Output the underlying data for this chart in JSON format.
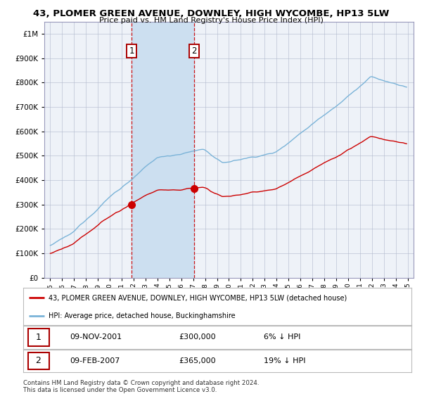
{
  "title": "43, PLOMER GREEN AVENUE, DOWNLEY, HIGH WYCOMBE, HP13 5LW",
  "subtitle": "Price paid vs. HM Land Registry's House Price Index (HPI)",
  "sale1_date": "09-NOV-2001",
  "sale1_price": 300000,
  "sale1_label": "1",
  "sale2_date": "09-FEB-2007",
  "sale2_price": 365000,
  "sale2_label": "2",
  "sale1_hpi_pct": "6% ↓ HPI",
  "sale2_hpi_pct": "19% ↓ HPI",
  "legend_red": "43, PLOMER GREEN AVENUE, DOWNLEY, HIGH WYCOMBE, HP13 5LW (detached house)",
  "legend_blue": "HPI: Average price, detached house, Buckinghamshire",
  "footer": "Contains HM Land Registry data © Crown copyright and database right 2024.\nThis data is licensed under the Open Government Licence v3.0.",
  "hpi_color": "#7ab3d8",
  "price_color": "#cc0000",
  "background_color": "#ffffff",
  "plot_bg_color": "#eef2f8",
  "grid_color": "#b0b8cc",
  "shade_color": "#ccdff0",
  "ylim": [
    0,
    1050000
  ],
  "yticks": [
    0,
    100000,
    200000,
    300000,
    400000,
    500000,
    600000,
    700000,
    800000,
    900000,
    1000000
  ]
}
